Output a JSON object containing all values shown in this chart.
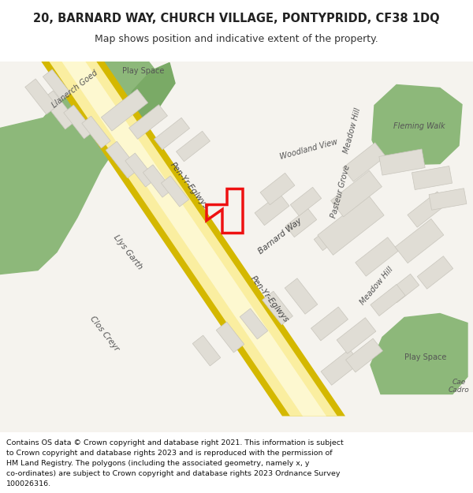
{
  "title_line1": "20, BARNARD WAY, CHURCH VILLAGE, PONTYPRIDD, CF38 1DQ",
  "title_line2": "Map shows position and indicative extent of the property.",
  "footer_lines": [
    "Contains OS data © Crown copyright and database right 2021. This information is subject",
    "to Crown copyright and database rights 2023 and is reproduced with the permission of",
    "HM Land Registry. The polygons (including the associated geometry, namely x, y",
    "co-ordinates) are subject to Crown copyright and database rights 2023 Ordnance Survey",
    "100026316."
  ],
  "bg_color": "#f5f3ee",
  "road_color": "#faeea0",
  "road_border_color": "#d4b800",
  "road_inner_color": "#fdf8d0",
  "building_color": "#e0ddd5",
  "building_border": "#c8c5bc",
  "green_color": "#8db87a",
  "green_dark": "#7aaa66",
  "red_polygon_color": "#ee1111",
  "header_bg": "#ffffff",
  "footer_bg": "#ffffff"
}
